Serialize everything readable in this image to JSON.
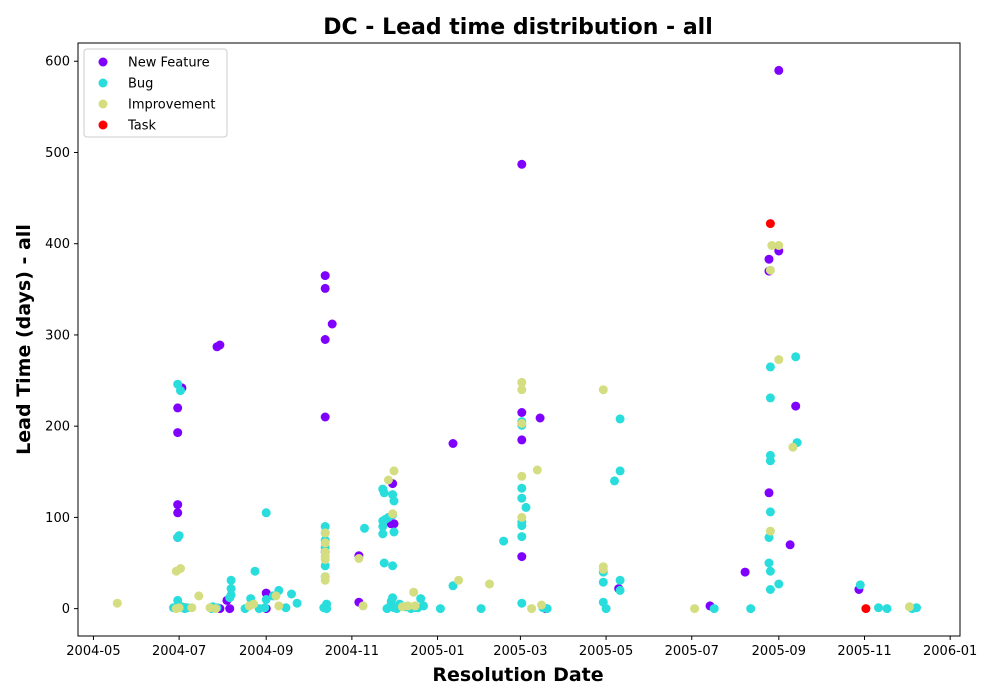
{
  "chart_data": {
    "type": "scatter",
    "title": "DC - Lead time distribution - all",
    "xlabel": "Resolution Date",
    "ylabel": "Lead Time (days) - all",
    "xlim": [
      "2004-04-20",
      "2006-01-08"
    ],
    "ylim": [
      -30,
      620
    ],
    "x_ticks": [
      "2004-05-01",
      "2004-07-01",
      "2004-09-01",
      "2004-11-01",
      "2005-01-01",
      "2005-03-01",
      "2005-05-01",
      "2005-07-01",
      "2005-09-01",
      "2005-11-01",
      "2006-01-01"
    ],
    "x_tick_labels": [
      "2004-05",
      "2004-07",
      "2004-09",
      "2004-11",
      "2005-01",
      "2005-03",
      "2005-05",
      "2005-07",
      "2005-09",
      "2005-11",
      "2006-01"
    ],
    "y_ticks": [
      0,
      100,
      200,
      300,
      400,
      500,
      600
    ],
    "grid": false,
    "legend_position": "top-left",
    "series": [
      {
        "name": "New Feature",
        "color": "#8000ff",
        "points": [
          [
            "2004-06-30",
            220
          ],
          [
            "2004-06-30",
            193
          ],
          [
            "2004-06-30",
            114
          ],
          [
            "2004-06-30",
            105
          ],
          [
            "2004-06-30",
            78
          ],
          [
            "2004-07-03",
            242
          ],
          [
            "2004-07-01",
            2
          ],
          [
            "2004-07-05",
            1
          ],
          [
            "2004-07-28",
            287
          ],
          [
            "2004-07-30",
            289
          ],
          [
            "2004-07-30",
            0
          ],
          [
            "2004-08-04",
            9
          ],
          [
            "2004-08-06",
            0
          ],
          [
            "2004-09-01",
            17
          ],
          [
            "2004-09-01",
            0
          ],
          [
            "2004-10-13",
            365
          ],
          [
            "2004-10-13",
            351
          ],
          [
            "2004-10-13",
            295
          ],
          [
            "2004-10-18",
            312
          ],
          [
            "2004-10-13",
            210
          ],
          [
            "2004-10-13",
            62
          ],
          [
            "2004-11-06",
            58
          ],
          [
            "2004-11-06",
            7
          ],
          [
            "2004-11-30",
            137
          ],
          [
            "2004-11-29",
            93
          ],
          [
            "2004-12-01",
            93
          ],
          [
            "2005-01-12",
            181
          ],
          [
            "2005-03-02",
            487
          ],
          [
            "2005-03-02",
            215
          ],
          [
            "2005-03-02",
            185
          ],
          [
            "2005-03-02",
            57
          ],
          [
            "2005-03-15",
            209
          ],
          [
            "2005-03-19",
            0
          ],
          [
            "2005-07-14",
            3
          ],
          [
            "2005-08-08",
            40
          ],
          [
            "2005-08-25",
            383
          ],
          [
            "2005-08-25",
            370
          ],
          [
            "2005-08-25",
            127
          ],
          [
            "2005-09-01",
            590
          ],
          [
            "2005-09-01",
            392
          ],
          [
            "2005-09-09",
            70
          ],
          [
            "2005-09-13",
            222
          ],
          [
            "2005-05-10",
            22
          ],
          [
            "2005-10-28",
            21
          ]
        ]
      },
      {
        "name": "Bug",
        "color": "#2adddd",
        "points": [
          [
            "2004-06-27",
            1
          ],
          [
            "2004-06-30",
            246
          ],
          [
            "2004-07-02",
            239
          ],
          [
            "2004-07-01",
            80
          ],
          [
            "2004-06-30",
            78
          ],
          [
            "2004-06-30",
            9
          ],
          [
            "2004-07-03",
            2
          ],
          [
            "2004-07-05",
            0
          ],
          [
            "2004-07-07",
            1
          ],
          [
            "2004-07-24",
            0
          ],
          [
            "2004-07-25",
            2
          ],
          [
            "2004-07-28",
            1
          ],
          [
            "2004-08-07",
            31
          ],
          [
            "2004-08-07",
            22
          ],
          [
            "2004-08-07",
            15
          ],
          [
            "2004-08-06",
            12
          ],
          [
            "2004-08-17",
            0
          ],
          [
            "2004-08-21",
            11
          ],
          [
            "2004-08-24",
            41
          ],
          [
            "2004-08-27",
            0
          ],
          [
            "2004-08-31",
            1
          ],
          [
            "2004-09-01",
            10
          ],
          [
            "2004-09-01",
            105
          ],
          [
            "2004-09-06",
            14
          ],
          [
            "2004-09-10",
            20
          ],
          [
            "2004-09-15",
            1
          ],
          [
            "2004-09-19",
            16
          ],
          [
            "2004-09-23",
            6
          ],
          [
            "2004-10-13",
            90
          ],
          [
            "2004-10-13",
            83
          ],
          [
            "2004-10-13",
            75
          ],
          [
            "2004-10-13",
            67
          ],
          [
            "2004-10-13",
            47
          ],
          [
            "2004-10-13",
            35
          ],
          [
            "2004-10-14",
            5
          ],
          [
            "2004-10-12",
            1
          ],
          [
            "2004-10-14",
            0
          ],
          [
            "2004-11-10",
            88
          ],
          [
            "2004-11-23",
            131
          ],
          [
            "2004-11-24",
            127
          ],
          [
            "2004-11-23",
            96
          ],
          [
            "2004-11-23",
            90
          ],
          [
            "2004-11-23",
            82
          ],
          [
            "2004-11-24",
            50
          ],
          [
            "2004-11-25",
            98
          ],
          [
            "2004-11-27",
            100
          ],
          [
            "2004-11-29",
            8
          ],
          [
            "2004-11-26",
            0
          ],
          [
            "2004-11-28",
            2
          ],
          [
            "2004-11-30",
            125
          ],
          [
            "2004-12-01",
            118
          ],
          [
            "2004-11-30",
            103
          ],
          [
            "2004-12-01",
            84
          ],
          [
            "2004-11-30",
            47
          ],
          [
            "2004-11-30",
            12
          ],
          [
            "2004-12-01",
            1
          ],
          [
            "2004-12-03",
            0
          ],
          [
            "2004-12-05",
            5
          ],
          [
            "2004-12-09",
            2
          ],
          [
            "2004-12-13",
            0
          ],
          [
            "2004-12-16",
            1
          ],
          [
            "2004-12-18",
            1
          ],
          [
            "2004-12-20",
            11
          ],
          [
            "2004-12-22",
            3
          ],
          [
            "2005-01-03",
            0
          ],
          [
            "2005-01-12",
            25
          ],
          [
            "2005-02-01",
            0
          ],
          [
            "2005-02-17",
            74
          ],
          [
            "2005-03-02",
            205
          ],
          [
            "2005-03-02",
            201
          ],
          [
            "2005-03-02",
            132
          ],
          [
            "2005-03-02",
            121
          ],
          [
            "2005-03-02",
            95
          ],
          [
            "2005-03-02",
            91
          ],
          [
            "2005-03-02",
            79
          ],
          [
            "2005-03-05",
            111
          ],
          [
            "2005-03-02",
            6
          ],
          [
            "2005-03-17",
            1
          ],
          [
            "2005-03-20",
            0
          ],
          [
            "2005-04-29",
            40
          ],
          [
            "2005-04-29",
            29
          ],
          [
            "2005-04-29",
            7
          ],
          [
            "2005-05-01",
            0
          ],
          [
            "2005-05-07",
            140
          ],
          [
            "2005-05-11",
            208
          ],
          [
            "2005-05-11",
            151
          ],
          [
            "2005-05-11",
            31
          ],
          [
            "2005-05-11",
            20
          ],
          [
            "2005-07-17",
            0
          ],
          [
            "2005-08-12",
            0
          ],
          [
            "2005-08-26",
            265
          ],
          [
            "2005-08-26",
            231
          ],
          [
            "2005-08-26",
            168
          ],
          [
            "2005-08-26",
            162
          ],
          [
            "2005-08-26",
            106
          ],
          [
            "2005-08-25",
            78
          ],
          [
            "2005-08-25",
            50
          ],
          [
            "2005-08-26",
            41
          ],
          [
            "2005-08-26",
            21
          ],
          [
            "2005-09-01",
            27
          ],
          [
            "2005-09-13",
            276
          ],
          [
            "2005-09-14",
            182
          ],
          [
            "2005-10-29",
            26
          ],
          [
            "2005-11-11",
            1
          ],
          [
            "2005-11-17",
            0
          ],
          [
            "2005-12-05",
            0
          ],
          [
            "2005-12-08",
            1
          ]
        ]
      },
      {
        "name": "Improvement",
        "color": "#d4dd80",
        "points": [
          [
            "2004-05-18",
            6
          ],
          [
            "2004-06-29",
            41
          ],
          [
            "2004-07-02",
            44
          ],
          [
            "2004-07-01",
            1
          ],
          [
            "2004-06-29",
            0
          ],
          [
            "2004-07-10",
            1
          ],
          [
            "2004-07-15",
            14
          ],
          [
            "2004-07-23",
            1
          ],
          [
            "2004-07-27",
            0
          ],
          [
            "2004-08-20",
            3
          ],
          [
            "2004-08-23",
            5
          ],
          [
            "2004-09-08",
            14
          ],
          [
            "2004-09-10",
            3
          ],
          [
            "2004-10-13",
            83
          ],
          [
            "2004-10-13",
            72
          ],
          [
            "2004-10-13",
            62
          ],
          [
            "2004-10-13",
            57
          ],
          [
            "2004-10-13",
            54
          ],
          [
            "2004-10-13",
            35
          ],
          [
            "2004-10-13",
            31
          ],
          [
            "2004-11-06",
            55
          ],
          [
            "2004-11-09",
            3
          ],
          [
            "2004-11-27",
            141
          ],
          [
            "2004-11-30",
            104
          ],
          [
            "2004-12-01",
            151
          ],
          [
            "2004-12-07",
            2
          ],
          [
            "2004-12-11",
            3
          ],
          [
            "2004-12-15",
            18
          ],
          [
            "2004-12-16",
            3
          ],
          [
            "2005-01-16",
            31
          ],
          [
            "2005-02-07",
            27
          ],
          [
            "2005-03-02",
            248
          ],
          [
            "2005-03-02",
            240
          ],
          [
            "2005-03-02",
            203
          ],
          [
            "2005-03-02",
            145
          ],
          [
            "2005-03-02",
            100
          ],
          [
            "2005-03-09",
            0
          ],
          [
            "2005-03-13",
            152
          ],
          [
            "2005-03-16",
            4
          ],
          [
            "2005-04-29",
            240
          ],
          [
            "2005-04-29",
            46
          ],
          [
            "2005-04-29",
            43
          ],
          [
            "2005-07-03",
            0
          ],
          [
            "2005-08-27",
            398
          ],
          [
            "2005-08-26",
            371
          ],
          [
            "2005-08-26",
            85
          ],
          [
            "2005-09-01",
            398
          ],
          [
            "2005-09-01",
            273
          ],
          [
            "2005-09-11",
            177
          ],
          [
            "2005-12-03",
            2
          ]
        ]
      },
      {
        "name": "Task",
        "color": "#ff0000",
        "points": [
          [
            "2005-08-26",
            422
          ],
          [
            "2005-11-02",
            0
          ]
        ]
      }
    ]
  }
}
